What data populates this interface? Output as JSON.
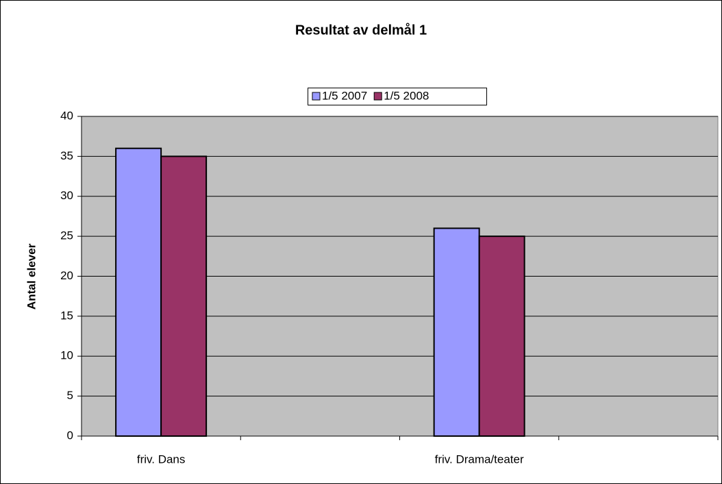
{
  "chart_data": {
    "type": "bar",
    "title": "Resultat av delmål 1",
    "ylabel": "Antal elever",
    "categories": [
      "friv. Dans",
      null,
      "friv. Drama/teater",
      null
    ],
    "series": [
      {
        "name": "1/5 2007",
        "color": "#9999ff",
        "values": [
          36,
          null,
          26,
          null
        ]
      },
      {
        "name": "1/5 2008",
        "color": "#993366",
        "values": [
          35,
          null,
          25,
          null
        ]
      }
    ],
    "ylim": [
      0,
      40
    ],
    "yticks": [
      0,
      5,
      10,
      15,
      20,
      25,
      30,
      35,
      40
    ],
    "grid": true,
    "legend": "top"
  }
}
